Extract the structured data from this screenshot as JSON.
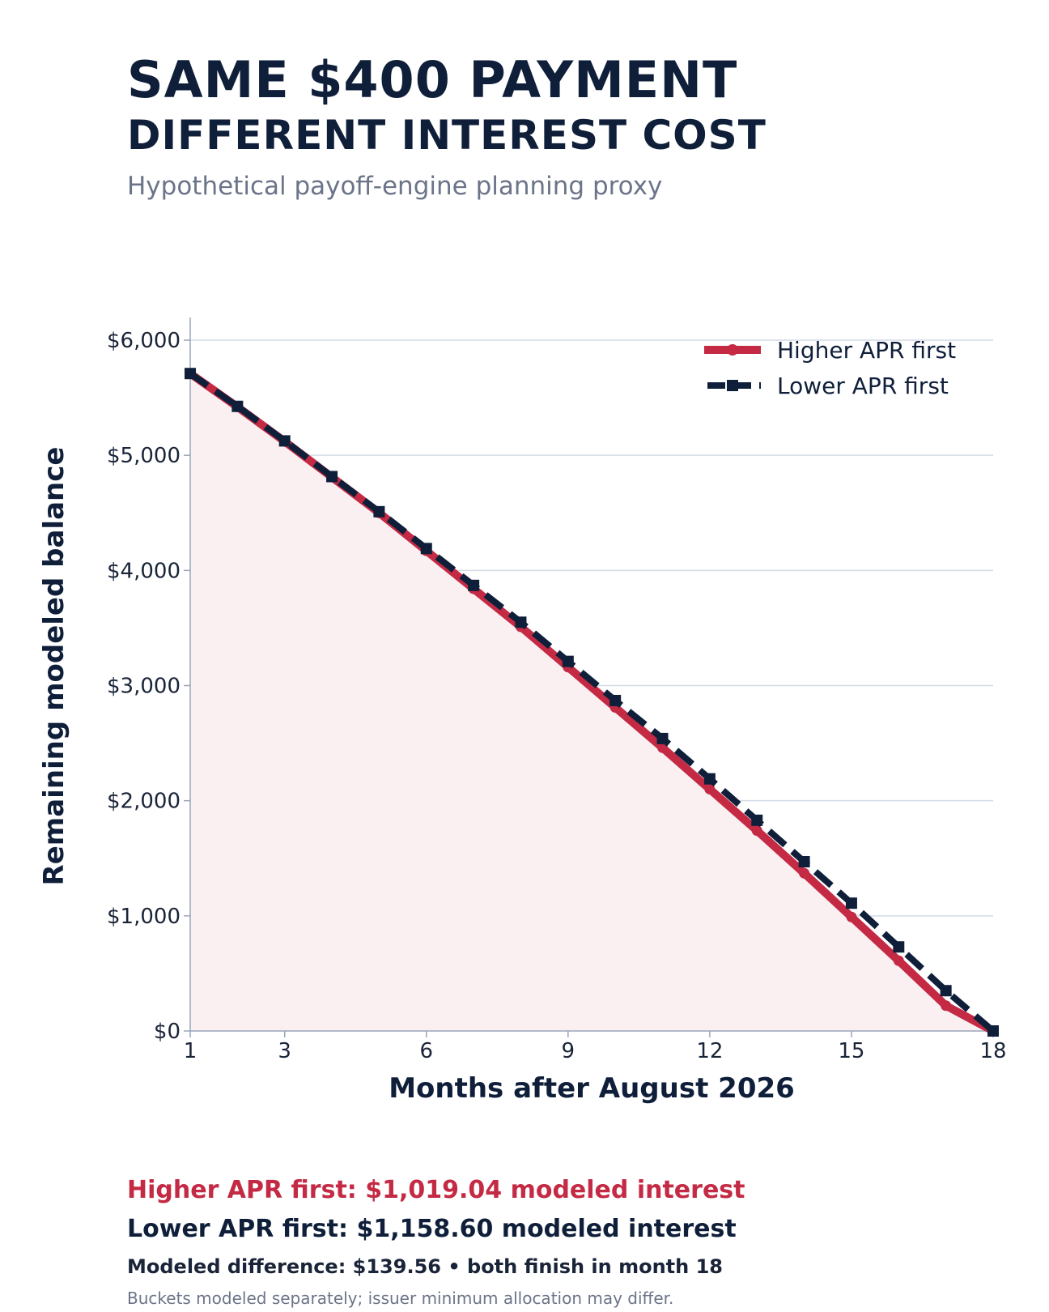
{
  "header": {
    "title_line1": "SAME $400 PAYMENT",
    "title_line2": "DIFFERENT INTEREST COST",
    "subtitle": "Hypothetical payoff-engine planning proxy"
  },
  "footer": {
    "higher_line": "Higher APR first: $1,019.04 modeled interest",
    "lower_line": "Lower APR first: $1,158.60 modeled interest",
    "difference_line": "Modeled difference: $139.56 • both finish in month 18",
    "note": "Buckets modeled separately; issuer minimum allocation may differ."
  },
  "colors": {
    "higher": "#c42a44",
    "lower": "#0f1f3a",
    "fill": "#faf0f2",
    "grid": "#d4dbe6",
    "axis": "#9aa6ba"
  },
  "chart_data": {
    "type": "line",
    "title": "SAME $400 PAYMENT DIFFERENT INTEREST COST",
    "subtitle": "Hypothetical payoff-engine planning proxy",
    "xlabel": "Months after August 2026",
    "ylabel": "Remaining modeled balance",
    "xlim": [
      1,
      18
    ],
    "ylim": [
      0,
      6200
    ],
    "xticks": [
      1,
      3,
      6,
      9,
      12,
      15,
      18
    ],
    "yticks": [
      0,
      1000,
      2000,
      3000,
      4000,
      5000,
      6000
    ],
    "ytick_labels": [
      "$0",
      "$1,000",
      "$2,000",
      "$3,000",
      "$4,000",
      "$5,000",
      "$6,000"
    ],
    "grid": "horizontal",
    "legend_position": "top-right",
    "x": [
      1,
      2,
      3,
      4,
      5,
      6,
      7,
      8,
      9,
      10,
      11,
      12,
      13,
      14,
      15,
      16,
      17,
      18
    ],
    "series": [
      {
        "name": "Higher APR first",
        "style": "solid-circle",
        "values": [
          5710,
          5420,
          5120,
          4810,
          4500,
          4170,
          3840,
          3510,
          3160,
          2810,
          2460,
          2100,
          1740,
          1370,
          990,
          610,
          220,
          0
        ]
      },
      {
        "name": "Lower APR first",
        "style": "dashed-square",
        "values": [
          5710,
          5425,
          5125,
          4815,
          4510,
          4190,
          3870,
          3550,
          3210,
          2870,
          2540,
          2190,
          1830,
          1470,
          1110,
          730,
          350,
          0
        ]
      }
    ]
  }
}
